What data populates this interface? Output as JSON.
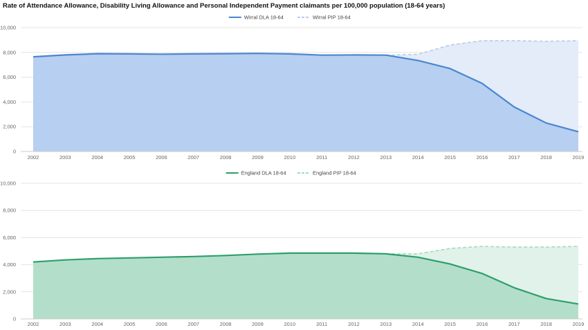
{
  "title": "Rate of Attendance Allowance, Disability Living Allowance and Personal Independent Payment claimants per 100,000 population (18-64 years)",
  "chart_data": [
    {
      "type": "area",
      "categories": [
        "2002",
        "2003",
        "2004",
        "2005",
        "2006",
        "2007",
        "2008",
        "2009",
        "2010",
        "2011",
        "2012",
        "2013",
        "2014",
        "2015",
        "2016",
        "2017",
        "2018",
        "2019"
      ],
      "ylim": [
        0,
        10000
      ],
      "yticks": [
        0,
        2000,
        4000,
        6000,
        8000,
        10000
      ],
      "ytick_labels": [
        "0",
        "2,000",
        "4,000",
        "6,000",
        "8,000",
        "10,000"
      ],
      "grid": true,
      "legend": "top-center",
      "series": [
        {
          "name": "Wirral DLA 18-64",
          "color": "#4a86cf",
          "fill": "#b7cff0",
          "style": "solid",
          "values": [
            7650,
            7800,
            7900,
            7880,
            7860,
            7880,
            7900,
            7920,
            7880,
            7780,
            7800,
            7780,
            7350,
            6700,
            5500,
            3600,
            2300,
            1600
          ]
        },
        {
          "name": "Wirral PIP 18-64",
          "color": "#b8cde8",
          "fill": "#e3ecf8",
          "style": "dashed",
          "values": [
            null,
            null,
            null,
            null,
            null,
            null,
            null,
            null,
            null,
            null,
            null,
            7780,
            7850,
            8600,
            8950,
            8950,
            8900,
            8950
          ]
        }
      ]
    },
    {
      "type": "area",
      "categories": [
        "2002",
        "2003",
        "2004",
        "2005",
        "2006",
        "2007",
        "2008",
        "2009",
        "2010",
        "2011",
        "2012",
        "2013",
        "2014",
        "2015",
        "2016",
        "2017",
        "2018",
        "2019"
      ],
      "ylim": [
        0,
        10000
      ],
      "yticks": [
        0,
        2000,
        4000,
        6000,
        8000,
        10000
      ],
      "ytick_labels": [
        "0",
        "2,000",
        "4,000",
        "6,000",
        "8,000",
        "10,000"
      ],
      "grid": true,
      "legend": "top-center",
      "series": [
        {
          "name": "England DLA 18-64",
          "color": "#2e9e6a",
          "fill": "#b3dfca",
          "style": "solid",
          "values": [
            4200,
            4350,
            4450,
            4500,
            4550,
            4600,
            4680,
            4780,
            4850,
            4850,
            4850,
            4800,
            4550,
            4050,
            3350,
            2300,
            1500,
            1100
          ]
        },
        {
          "name": "England PIP 18-64",
          "color": "#a6d9c0",
          "fill": "#e0f2e9",
          "style": "dashed",
          "values": [
            null,
            null,
            null,
            null,
            null,
            null,
            null,
            null,
            null,
            null,
            null,
            4800,
            4800,
            5200,
            5350,
            5300,
            5300,
            5350
          ]
        }
      ]
    }
  ]
}
